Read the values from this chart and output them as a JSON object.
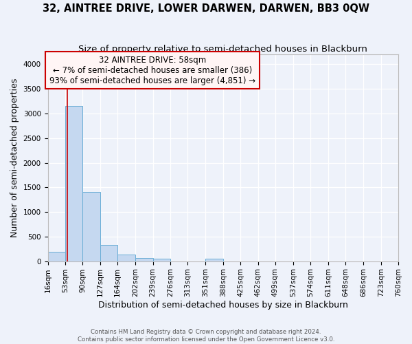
{
  "title": "32, AINTREE DRIVE, LOWER DARWEN, DARWEN, BB3 0QW",
  "subtitle": "Size of property relative to semi-detached houses in Blackburn",
  "xlabel": "Distribution of semi-detached houses by size in Blackburn",
  "ylabel": "Number of semi-detached properties",
  "bin_edges": [
    16,
    53,
    90,
    127,
    164,
    202,
    239,
    276,
    313,
    351,
    388,
    425,
    462,
    499,
    537,
    574,
    611,
    648,
    686,
    723,
    760
  ],
  "bar_heights": [
    190,
    3150,
    1400,
    330,
    140,
    60,
    50,
    0,
    0,
    50,
    0,
    0,
    0,
    0,
    0,
    0,
    0,
    0,
    0,
    0
  ],
  "bar_color": "#c5d8f0",
  "bar_edge_color": "#6baed6",
  "property_size": 58,
  "property_label": "32 AINTREE DRIVE: 58sqm",
  "annotation_line1": "← 7% of semi-detached houses are smaller (386)",
  "annotation_line2": "93% of semi-detached houses are larger (4,851) →",
  "vline_color": "#cc0000",
  "annotation_facecolor": "#fff5f5",
  "annotation_border_color": "#cc0000",
  "ylim": [
    0,
    4200
  ],
  "yticks": [
    0,
    500,
    1000,
    1500,
    2000,
    2500,
    3000,
    3500,
    4000
  ],
  "background_color": "#eef2fa",
  "grid_color": "#ffffff",
  "footer_line1": "Contains HM Land Registry data © Crown copyright and database right 2024.",
  "footer_line2": "Contains public sector information licensed under the Open Government Licence v3.0.",
  "title_fontsize": 10.5,
  "subtitle_fontsize": 9.5,
  "axis_label_fontsize": 9,
  "tick_fontsize": 7.5,
  "annot_fontsize": 8.5
}
